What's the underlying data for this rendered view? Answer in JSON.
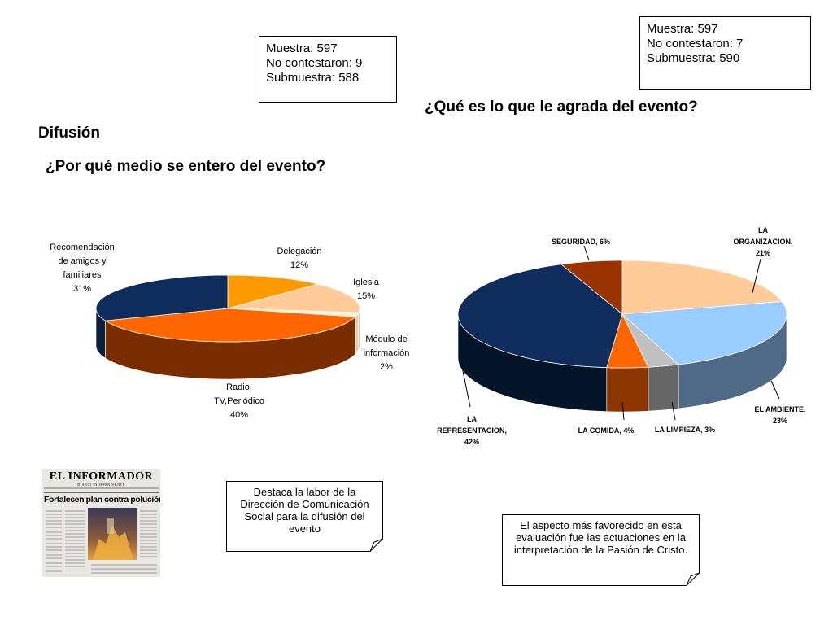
{
  "left_sample": {
    "line1": "Muestra: 597",
    "line2": "No contestaron: 9",
    "line3": "Submuestra: 588"
  },
  "right_sample": {
    "line1": "Muestra: 597",
    "line2": "No contestaron: 7",
    "line3": "Submuestra: 590"
  },
  "section_title": "Difusión",
  "chart_data": [
    {
      "type": "pie",
      "title": "¿Por qué medio se entero del evento?",
      "slices": [
        {
          "lines": [
            "Delegación",
            "12%"
          ],
          "value": 12,
          "color": "#FF9900",
          "side": "#CC7A00"
        },
        {
          "lines": [
            "Iglesia",
            "15%"
          ],
          "value": 15,
          "color": "#FFCC99",
          "side": "#D9A877"
        },
        {
          "lines": [
            "Módulo de",
            "información",
            "2%"
          ],
          "value": 2,
          "color": "#FFF3D6",
          "side": "#D9CFAE"
        },
        {
          "lines": [
            "Radio,",
            "TV,Periódico",
            "40%"
          ],
          "value": 40,
          "color": "#FF6600",
          "side": "#7A2E00"
        },
        {
          "lines": [
            "Recomendación",
            "de amigos y",
            "familiares",
            "31%"
          ],
          "value": 31,
          "color": "#0F2D5C",
          "side": "#0A1E3D"
        }
      ]
    },
    {
      "type": "pie",
      "title": "¿Qué es lo que le agrada del evento?",
      "slices": [
        {
          "lines": [
            "LA",
            "ORGANIZACIÓN,",
            "21%"
          ],
          "value": 21,
          "color": "#FFCC99",
          "side": "#D9A877"
        },
        {
          "lines": [
            "EL AMBIENTE,",
            "23%"
          ],
          "value": 23,
          "color": "#99CCFF",
          "side": "#4F6A86"
        },
        {
          "lines": [
            "LA LIMPIEZA, 3%"
          ],
          "value": 3,
          "color": "#C0C0C0",
          "side": "#666666"
        },
        {
          "lines": [
            "LA COMIDA, 4%"
          ],
          "value": 4,
          "color": "#FF6600",
          "side": "#8B3500"
        },
        {
          "lines": [
            "LA",
            "REPRESENTACION,",
            "42%"
          ],
          "value": 42,
          "color": "#0F2D5C",
          "side": "#051529"
        },
        {
          "lines": [
            "SEGURIDAD, 6%"
          ],
          "value": 6,
          "color": "#993300",
          "side": "#6B2200"
        }
      ]
    }
  ],
  "newspaper": {
    "masthead": "EL INFORMADOR",
    "subtitle": "DIARIO INDEPENDIENTE",
    "headline": "Fortalecen plan contra polución"
  },
  "notes": {
    "left": "Destaca la labor de la Dirección de Comunicación Social para la difusión del evento",
    "right": "El aspecto más favorecido en esta evaluación fue las actuaciones en la interpretación de la Pasión de Cristo."
  }
}
